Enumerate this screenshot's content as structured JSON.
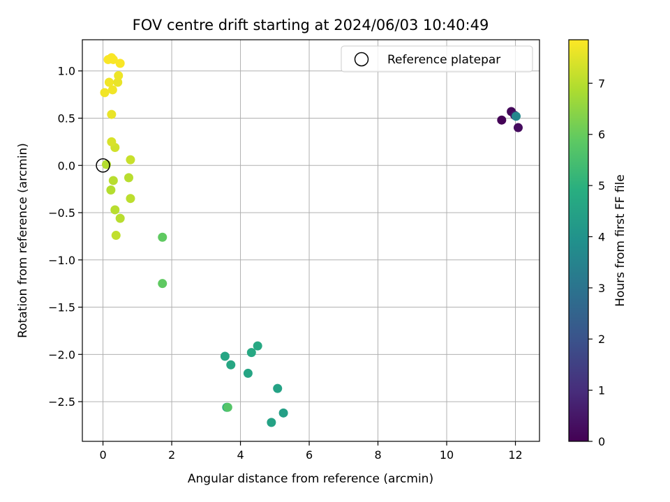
{
  "chart_data": {
    "type": "scatter",
    "title": "FOV centre drift starting at 2024/06/03 10:40:49",
    "xlabel": "Angular distance from reference (arcmin)",
    "ylabel": "Rotation from reference (arcmin)",
    "xlim": [
      -0.6,
      12.7
    ],
    "ylim": [
      -2.92,
      1.33
    ],
    "grid": true,
    "x_ticks": [
      0,
      2,
      4,
      6,
      8,
      10,
      12
    ],
    "x_tick_labels": [
      "0",
      "2",
      "4",
      "6",
      "8",
      "10",
      "12"
    ],
    "y_ticks": [
      1.0,
      0.5,
      0.0,
      -0.5,
      -1.0,
      -1.5,
      -2.0,
      -2.5
    ],
    "y_tick_labels": [
      "1.0",
      "0.5",
      "0.0",
      "−0.5",
      "−1.0",
      "−1.5",
      "−2.0",
      "−2.5"
    ],
    "colorbar": {
      "label": "Hours from first FF file",
      "range": [
        0,
        7.85
      ],
      "ticks": [
        0,
        1,
        2,
        3,
        4,
        5,
        6,
        7
      ],
      "tick_labels": [
        "0",
        "1",
        "2",
        "3",
        "4",
        "5",
        "6",
        "7"
      ],
      "colormap": "viridis"
    },
    "legend": {
      "placement": "top-right",
      "entries": [
        {
          "label": "Reference platepar",
          "marker": "open-circle"
        }
      ]
    },
    "reference_point": {
      "x": 0,
      "y": 0
    },
    "points": [
      {
        "x": 11.6,
        "y": 0.48,
        "c": 0.05
      },
      {
        "x": 11.88,
        "y": 0.57,
        "c": 0.15
      },
      {
        "x": 12.08,
        "y": 0.4,
        "c": 0.25
      },
      {
        "x": 11.98,
        "y": 0.53,
        "c": 0.45
      },
      {
        "x": 12.02,
        "y": 0.52,
        "c": 3.6
      },
      {
        "x": 3.55,
        "y": -2.02,
        "c": 4.6
      },
      {
        "x": 3.72,
        "y": -2.11,
        "c": 4.65
      },
      {
        "x": 4.32,
        "y": -1.98,
        "c": 4.7
      },
      {
        "x": 4.5,
        "y": -1.91,
        "c": 4.7
      },
      {
        "x": 4.22,
        "y": -2.2,
        "c": 4.6
      },
      {
        "x": 5.08,
        "y": -2.36,
        "c": 4.5
      },
      {
        "x": 5.25,
        "y": -2.62,
        "c": 4.4
      },
      {
        "x": 4.9,
        "y": -2.72,
        "c": 4.5
      },
      {
        "x": 3.6,
        "y": -2.56,
        "c": 4.8
      },
      {
        "x": 3.63,
        "y": -2.56,
        "c": 5.7
      },
      {
        "x": 1.73,
        "y": -0.76,
        "c": 5.9
      },
      {
        "x": 1.73,
        "y": -1.25,
        "c": 5.9
      },
      {
        "x": 0.1,
        "y": 0.01,
        "c": 6.95
      },
      {
        "x": 0.3,
        "y": -0.16,
        "c": 7.0
      },
      {
        "x": 0.23,
        "y": -0.26,
        "c": 6.95
      },
      {
        "x": 0.35,
        "y": -0.47,
        "c": 7.0
      },
      {
        "x": 0.5,
        "y": -0.56,
        "c": 7.0
      },
      {
        "x": 0.38,
        "y": -0.74,
        "c": 7.1
      },
      {
        "x": 0.8,
        "y": -0.35,
        "c": 7.05
      },
      {
        "x": 0.75,
        "y": -0.13,
        "c": 7.0
      },
      {
        "x": 0.8,
        "y": 0.06,
        "c": 7.2
      },
      {
        "x": 0.35,
        "y": 0.19,
        "c": 7.3
      },
      {
        "x": 0.25,
        "y": 0.25,
        "c": 7.4
      },
      {
        "x": 0.25,
        "y": 0.54,
        "c": 7.6
      },
      {
        "x": 0.05,
        "y": 0.77,
        "c": 7.7
      },
      {
        "x": 0.28,
        "y": 0.8,
        "c": 7.7
      },
      {
        "x": 0.18,
        "y": 0.88,
        "c": 7.7
      },
      {
        "x": 0.43,
        "y": 0.88,
        "c": 7.6
      },
      {
        "x": 0.45,
        "y": 0.95,
        "c": 7.65
      },
      {
        "x": 0.5,
        "y": 1.08,
        "c": 7.8
      },
      {
        "x": 0.15,
        "y": 1.12,
        "c": 7.8
      },
      {
        "x": 0.25,
        "y": 1.14,
        "c": 7.8
      },
      {
        "x": 0.3,
        "y": 1.12,
        "c": 7.8
      }
    ]
  }
}
